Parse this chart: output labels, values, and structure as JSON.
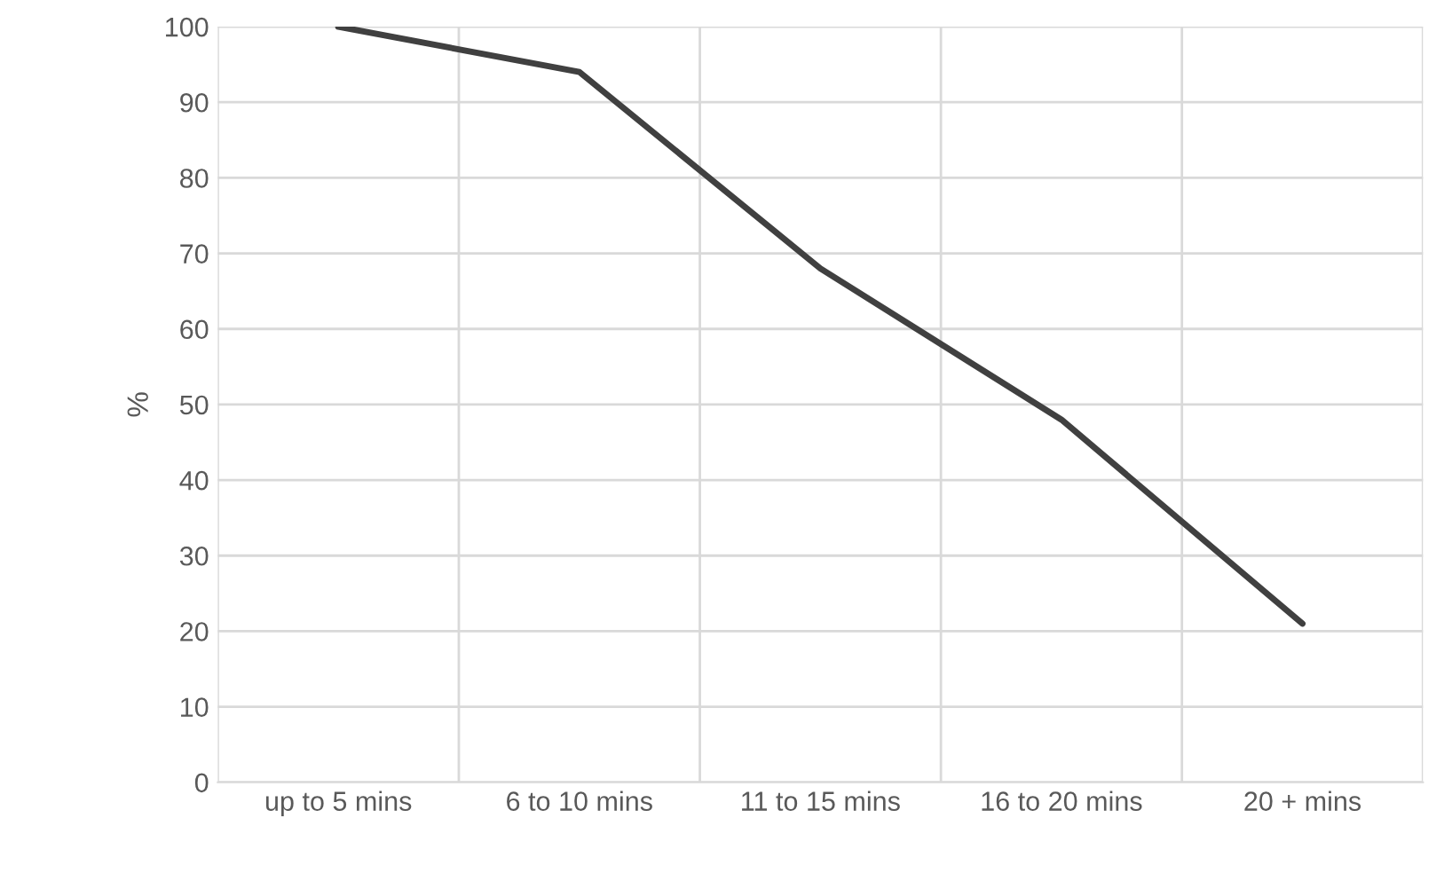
{
  "chart_data": {
    "type": "line",
    "ylabel": "%",
    "categories": [
      "up to 5 mins",
      "6 to 10 mins",
      "11 to 15 mins",
      "16 to 20 mins",
      "20 + mins"
    ],
    "series": [
      {
        "color": "#404040",
        "values": [
          100,
          94,
          68,
          48,
          21
        ]
      }
    ],
    "ylim": [
      0,
      100
    ],
    "yticks": [
      0,
      10,
      20,
      30,
      40,
      50,
      60,
      70,
      80,
      90,
      100
    ],
    "grid": true
  }
}
